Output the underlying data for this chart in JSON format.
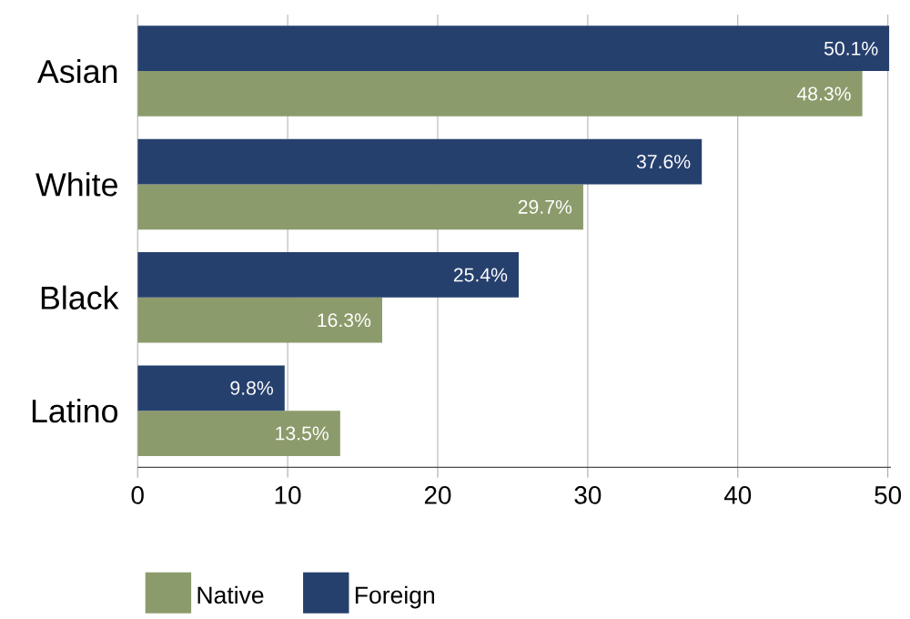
{
  "chart_data": {
    "type": "bar",
    "orientation": "horizontal",
    "categories": [
      "Asian",
      "White",
      "Black",
      "Latino"
    ],
    "series": [
      {
        "name": "Native",
        "color": "#8c9b6b",
        "values": [
          48.3,
          29.7,
          16.3,
          13.5
        ],
        "value_labels": [
          "48.3%",
          "29.7%",
          "16.3%",
          "13.5%"
        ]
      },
      {
        "name": "Foreign",
        "color": "#26406e",
        "values": [
          50.1,
          37.6,
          25.4,
          9.8
        ],
        "value_labels": [
          "50.1%",
          "37.6%",
          "25.4%",
          "9.8%"
        ]
      }
    ],
    "xlim": [
      0,
      50.2
    ],
    "xticks": [
      0,
      10,
      20,
      30,
      40,
      50
    ],
    "grid": "x",
    "legend": "bottom"
  }
}
